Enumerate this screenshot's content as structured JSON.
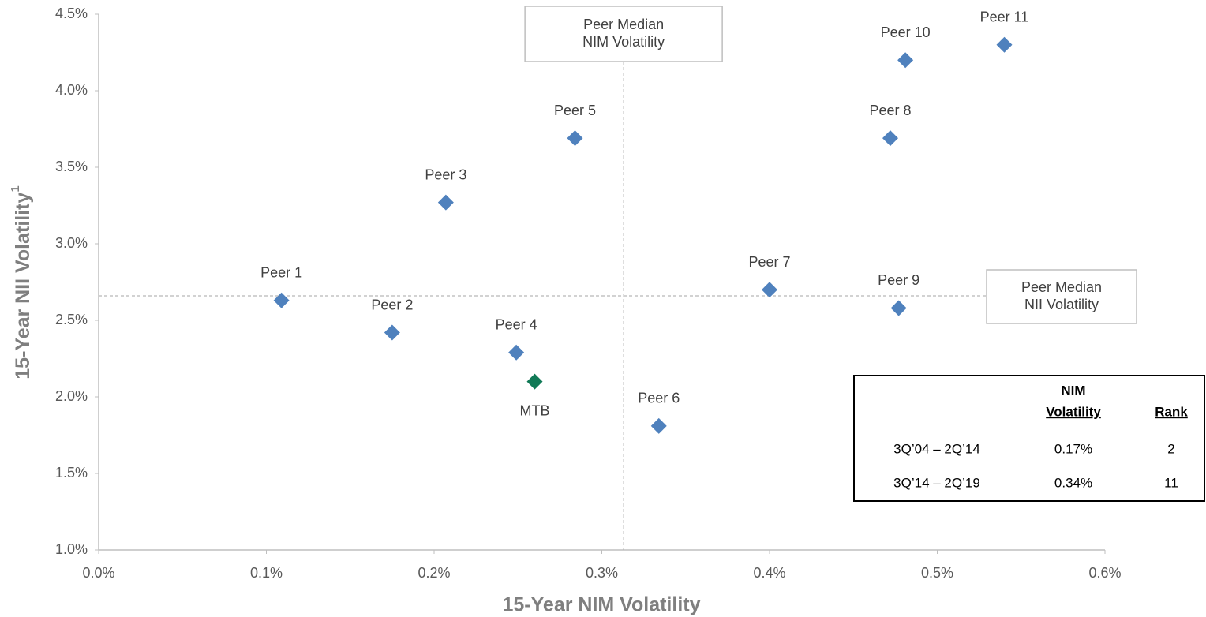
{
  "chart_data": {
    "type": "scatter",
    "x_label": "15-Year NIM Volatility",
    "y_label": "15-Year NII Volatility",
    "y_label_note": "1",
    "xlim": [
      0,
      0.6
    ],
    "ylim": [
      1.0,
      4.5
    ],
    "xticks": [
      {
        "value": 0,
        "label": "0.0%"
      },
      {
        "value": 0.1,
        "label": "0.1%"
      },
      {
        "value": 0.2,
        "label": "0.2%"
      },
      {
        "value": 0.3,
        "label": "0.3%"
      },
      {
        "value": 0.4,
        "label": "0.4%"
      },
      {
        "value": 0.5,
        "label": "0.5%"
      },
      {
        "value": 0.6,
        "label": "0.6%"
      }
    ],
    "yticks": [
      {
        "value": 1.0,
        "label": "1.0%"
      },
      {
        "value": 1.5,
        "label": "1.5%"
      },
      {
        "value": 2.0,
        "label": "2.0%"
      },
      {
        "value": 2.5,
        "label": "2.5%"
      },
      {
        "value": 3.0,
        "label": "3.0%"
      },
      {
        "value": 3.5,
        "label": "3.5%"
      },
      {
        "value": 4.0,
        "label": "4.0%"
      },
      {
        "value": 4.5,
        "label": "4.5%"
      }
    ],
    "labels": [
      "Peer 1",
      "Peer 2",
      "Peer 3",
      "Peer 4",
      "Peer 5",
      "Peer 6",
      "Peer 7",
      "Peer 8",
      "Peer 9",
      "Peer 10",
      "Peer 11",
      "MTB"
    ],
    "x": [
      0.109,
      0.175,
      0.207,
      0.249,
      0.284,
      0.334,
      0.4,
      0.472,
      0.477,
      0.481,
      0.54,
      0.26
    ],
    "y": [
      2.63,
      2.42,
      3.27,
      2.29,
      3.69,
      1.81,
      2.7,
      3.69,
      2.58,
      4.2,
      4.3,
      2.1
    ],
    "colors": [
      "#4f81bd",
      "#4f81bd",
      "#4f81bd",
      "#4f81bd",
      "#4f81bd",
      "#4f81bd",
      "#4f81bd",
      "#4f81bd",
      "#4f81bd",
      "#4f81bd",
      "#4f81bd",
      "#117a57"
    ],
    "median_x": 0.313,
    "median_x_label": [
      "Peer Median",
      "NIM  Volatility"
    ],
    "median_y": 2.66,
    "median_y_label": [
      "Peer Median",
      "NII  Volatility"
    ],
    "table": {
      "columns": [
        [
          "NIM",
          "Volatility"
        ],
        [
          "Rank"
        ]
      ],
      "rows": [
        [
          "3Q’04 – 2Q’14",
          "0.17%",
          "2"
        ],
        [
          "3Q’14 – 2Q’19",
          "0.34%",
          "11"
        ]
      ]
    }
  }
}
